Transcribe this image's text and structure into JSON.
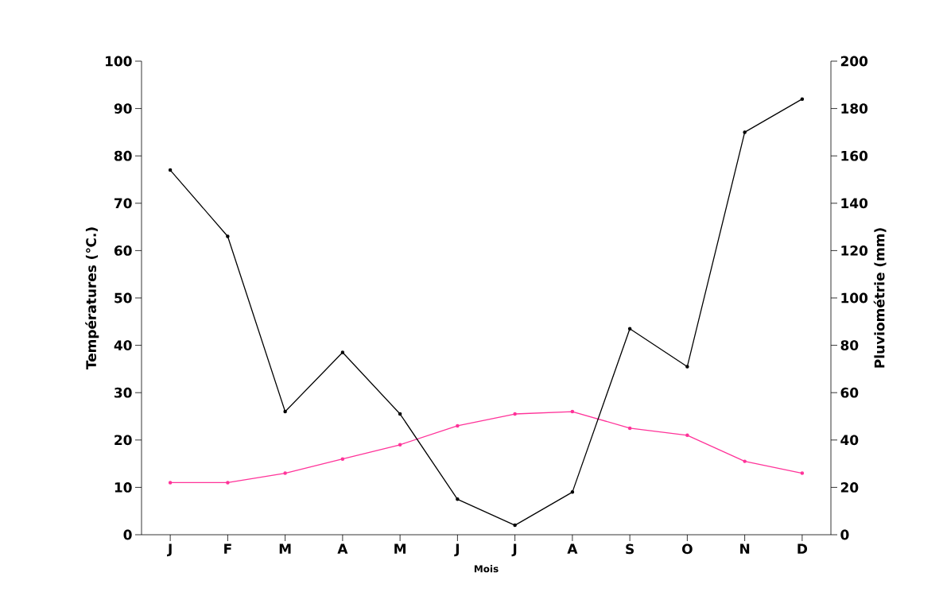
{
  "chart_data": {
    "type": "line",
    "xlabel": "Mois",
    "ylabel": "Températures (℃.)",
    "y2label": "Pluviométrie (mm)",
    "categories": [
      "J",
      "F",
      "M",
      "A",
      "M",
      "J",
      "J",
      "A",
      "S",
      "O",
      "N",
      "D"
    ],
    "series": [
      {
        "color": "#ff3399",
        "values": [
          11,
          11,
          13,
          16,
          19,
          23,
          25.5,
          26,
          22.5,
          21,
          15.5,
          13
        ]
      },
      {
        "color": "#000000",
        "axis": "y2",
        "values": [
          154,
          126,
          52,
          77,
          51,
          15,
          4,
          18,
          87,
          71,
          170,
          184
        ]
      }
    ],
    "ylim": [
      0,
      100
    ],
    "yticks": [
      0,
      10,
      20,
      30,
      40,
      50,
      60,
      70,
      80,
      90,
      100
    ],
    "y2lim": [
      0,
      200
    ],
    "y2ticks": [
      0,
      20,
      40,
      60,
      80,
      100,
      120,
      140,
      160,
      180,
      200
    ],
    "marker": "circle",
    "line_style": "solid",
    "grid": false
  }
}
